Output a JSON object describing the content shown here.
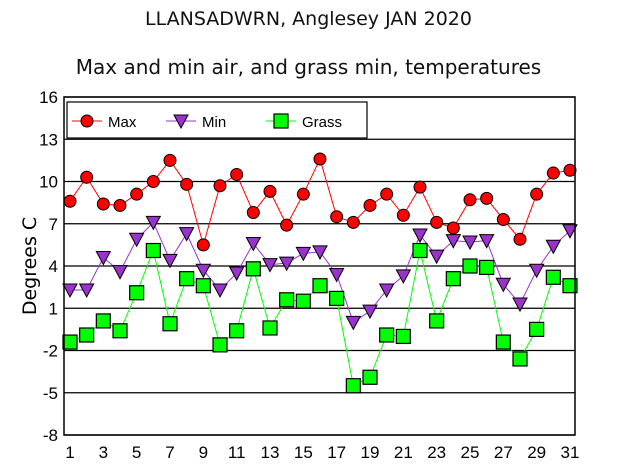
{
  "chart_data": {
    "type": "line",
    "title": "LLANSADWRN, Anglesey JAN 2020",
    "subtitle": "Max and min air, and grass min, temperatures",
    "xlabel": "",
    "ylabel": "Degrees C",
    "ylim": [
      -8,
      16
    ],
    "yticks": [
      16,
      13,
      10,
      7,
      4,
      1,
      -2,
      -5,
      -8
    ],
    "xlim": [
      1,
      31
    ],
    "xticks": [
      1,
      3,
      5,
      7,
      9,
      11,
      13,
      15,
      17,
      19,
      21,
      23,
      25,
      27,
      29,
      31
    ],
    "grid": "horizontal",
    "legend": "top-left",
    "x": [
      1,
      2,
      3,
      4,
      5,
      6,
      7,
      8,
      9,
      10,
      11,
      12,
      13,
      14,
      15,
      16,
      17,
      18,
      19,
      20,
      21,
      22,
      23,
      24,
      25,
      26,
      27,
      28,
      29,
      30,
      31
    ],
    "series": [
      {
        "name": "Max",
        "color": "#ff0000",
        "marker": "circle",
        "values": [
          8.6,
          10.3,
          8.4,
          8.3,
          9.1,
          10.0,
          11.5,
          9.8,
          5.5,
          9.7,
          10.5,
          7.8,
          9.3,
          6.9,
          9.1,
          11.6,
          7.5,
          7.1,
          8.3,
          9.1,
          7.6,
          9.6,
          7.1,
          6.7,
          8.7,
          8.8,
          7.3,
          5.9,
          9.1,
          10.6,
          10.8
        ]
      },
      {
        "name": "Min",
        "color": "#9933cc",
        "marker": "triangle-down",
        "values": [
          2.3,
          2.3,
          4.6,
          3.6,
          5.9,
          7.1,
          4.4,
          6.3,
          3.7,
          2.3,
          3.5,
          5.6,
          4.1,
          4.2,
          4.9,
          5.0,
          3.4,
          0.0,
          0.8,
          2.3,
          3.3,
          6.2,
          4.7,
          5.8,
          5.7,
          5.8,
          2.7,
          1.3,
          3.7,
          5.4,
          6.5
        ]
      },
      {
        "name": "Grass",
        "color": "#00ff00",
        "marker": "square",
        "values": [
          -1.4,
          -0.9,
          0.1,
          -0.6,
          2.1,
          5.1,
          -0.1,
          3.1,
          2.6,
          -1.6,
          -0.6,
          3.8,
          -0.4,
          1.6,
          1.5,
          2.6,
          1.7,
          -4.5,
          -3.9,
          -0.9,
          -1.0,
          5.1,
          0.1,
          3.1,
          4.0,
          3.9,
          -1.4,
          -2.6,
          -0.5,
          3.2,
          2.6
        ]
      }
    ]
  }
}
